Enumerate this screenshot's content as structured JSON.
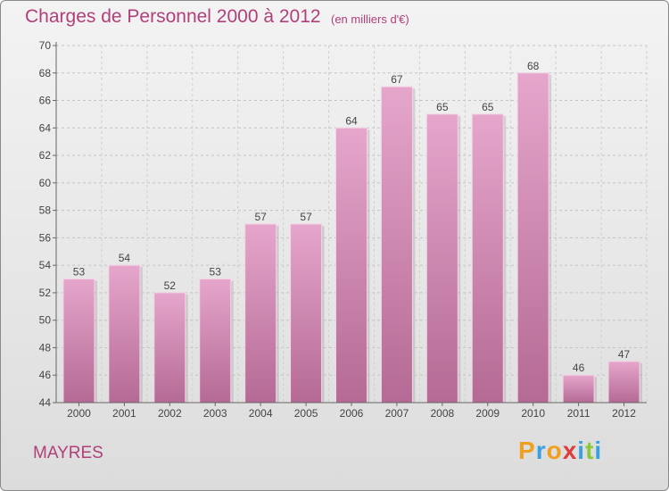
{
  "header": {
    "title": "Charges de Personnel 2000 à 2012",
    "subtitle": "(en milliers d'€)"
  },
  "footer": {
    "commune": "MAYRES",
    "logo_text": [
      "P",
      "r",
      "o",
      "x",
      "i",
      "t",
      "i"
    ],
    "logo_colors": [
      "#f0a020",
      "#3aa0e0",
      "#f0a020",
      "#e03c3c",
      "#3aa0e0",
      "#8cc83c",
      "#3aa0e0"
    ]
  },
  "colors": {
    "bar_light": "#e6a6cc",
    "bar_dark": "#b46a94",
    "text_accent": "#b0407a"
  },
  "chart_data": {
    "type": "bar",
    "categories": [
      "2000",
      "2001",
      "2002",
      "2003",
      "2004",
      "2005",
      "2006",
      "2007",
      "2008",
      "2009",
      "2010",
      "2011",
      "2012"
    ],
    "values": [
      53,
      54,
      52,
      53,
      57,
      57,
      64,
      67,
      65,
      65,
      68,
      46,
      47
    ],
    "ylim": [
      44,
      70
    ],
    "yticks": [
      44,
      46,
      48,
      50,
      52,
      54,
      56,
      58,
      60,
      62,
      64,
      66,
      68,
      70
    ],
    "grid": true,
    "legend": "none"
  }
}
